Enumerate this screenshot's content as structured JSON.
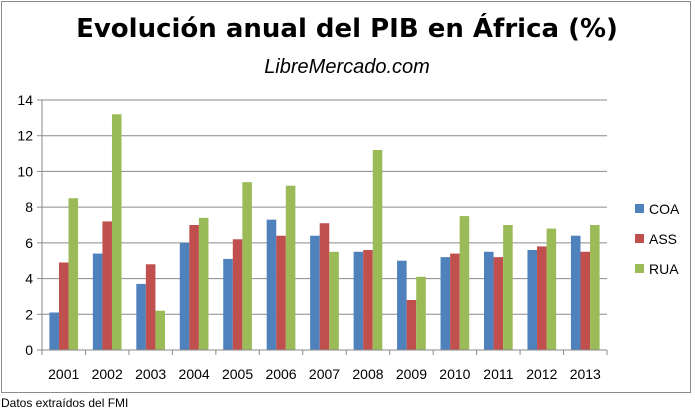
{
  "source_note": "Datos extraídos del FMI",
  "chart_data": {
    "type": "bar",
    "title": "Evolución anual del PIB en África (%)",
    "subtitle": "LibreMercado.com",
    "xlabel": "",
    "ylabel": "",
    "ylim": [
      0,
      14
    ],
    "yticks": [
      0,
      2,
      4,
      6,
      8,
      10,
      12,
      14
    ],
    "grid": true,
    "legend_position": "right",
    "categories": [
      "2001",
      "2002",
      "2003",
      "2004",
      "2005",
      "2006",
      "2007",
      "2008",
      "2009",
      "2010",
      "2011",
      "2012",
      "2013"
    ],
    "series": [
      {
        "name": "COA",
        "color": "#4f81bd",
        "values": [
          2.1,
          5.4,
          3.7,
          6.0,
          5.1,
          7.3,
          6.4,
          5.5,
          5.0,
          5.2,
          5.5,
          5.6,
          6.4
        ]
      },
      {
        "name": "ASS",
        "color": "#c0504d",
        "values": [
          4.9,
          7.2,
          4.8,
          7.0,
          6.2,
          6.4,
          7.1,
          5.6,
          2.8,
          5.4,
          5.2,
          5.8,
          5.5
        ]
      },
      {
        "name": "RUA",
        "color": "#9bbb59",
        "values": [
          8.5,
          13.2,
          2.2,
          7.4,
          9.4,
          9.2,
          5.5,
          11.2,
          4.1,
          7.5,
          7.0,
          6.8,
          7.0
        ]
      }
    ]
  }
}
